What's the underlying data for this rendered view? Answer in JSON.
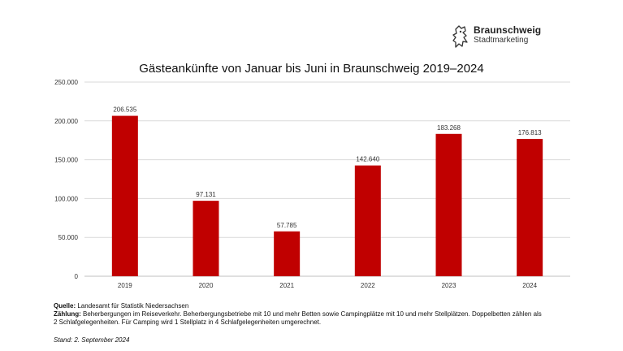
{
  "logo": {
    "brand": "Braunschweig",
    "sub": "Stadtmarketing",
    "icon": "heraldic-lion-icon"
  },
  "footnotes": {
    "quelle_label": "Quelle:",
    "quelle_text": "Landesamt für Statistik Niedersachsen",
    "zaehlung_label": "Zählung:",
    "zaehlung_line1": "Beherbergungen im Reiseverkehr. Beherbergungsbetriebe mit 10 und mehr Betten sowie Campingplätze mit 10 und mehr Stellplätzen. Doppelbetten zählen als",
    "zaehlung_line2": "2 Schlafgelegenheiten. Für Camping wird 1 Stellplatz in 4 Schlafgelegenheiten umgerechnet.",
    "stand": "Stand: 2. September 2024"
  },
  "chart_data": {
    "type": "bar",
    "title": "Gästeankünfte von Januar bis Juni in Braunschweig 2019–2024",
    "xlabel": "",
    "ylabel": "",
    "categories": [
      "2019",
      "2020",
      "2021",
      "2022",
      "2023",
      "2024"
    ],
    "values": [
      206535,
      97131,
      57785,
      142640,
      183268,
      176813
    ],
    "value_labels": [
      "206.535",
      "97.131",
      "57.785",
      "142.640",
      "183.268",
      "176.813"
    ],
    "ylim": [
      0,
      250000
    ],
    "yticks": [
      0,
      50000,
      100000,
      150000,
      200000,
      250000
    ],
    "ytick_labels": [
      "0",
      "50.000",
      "100.000",
      "150.000",
      "200.000",
      "250.000"
    ],
    "grid": true,
    "legend": "none",
    "bar_color": "#c00000",
    "grid_color": "#d9d9d9"
  }
}
